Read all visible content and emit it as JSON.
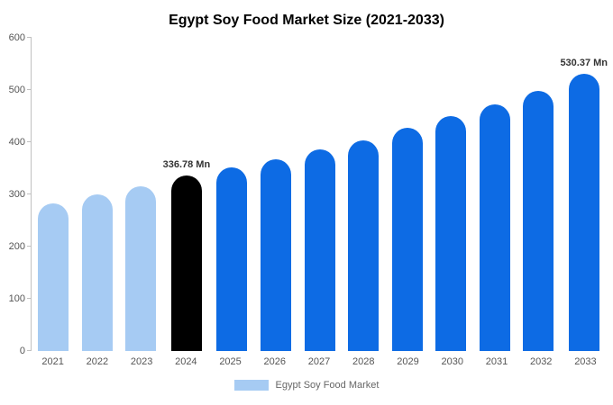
{
  "title": "Egypt Soy Food Market Size (2021-2033)",
  "legend": {
    "label": "Egypt Soy Food Market",
    "swatch_color": "#a6cbf3"
  },
  "colors": {
    "past": "#a6cbf3",
    "current": "#000000",
    "forecast": "#0d6be4"
  },
  "chart_data": {
    "type": "bar",
    "title": "Egypt Soy Food Market Size (2021-2033)",
    "categories": [
      "2021",
      "2022",
      "2023",
      "2024",
      "2025",
      "2026",
      "2027",
      "2028",
      "2029",
      "2030",
      "2031",
      "2032",
      "2033"
    ],
    "values": [
      283,
      300,
      315,
      336.78,
      351,
      368,
      387,
      404,
      427,
      450,
      472,
      499,
      530.37
    ],
    "bar_roles": [
      "past",
      "past",
      "past",
      "current",
      "forecast",
      "forecast",
      "forecast",
      "forecast",
      "forecast",
      "forecast",
      "forecast",
      "forecast",
      "forecast"
    ],
    "annotations": [
      {
        "category": "2024",
        "text": "336.78 Mn"
      },
      {
        "category": "2033",
        "text": "530.37 Mn"
      }
    ],
    "xlabel": "",
    "ylabel": "",
    "ylim": [
      0,
      600
    ],
    "y_ticks": [
      0,
      100,
      200,
      300,
      400,
      500,
      600
    ],
    "grid": false,
    "legend_position": "bottom",
    "legend_entries": [
      "Egypt Soy Food Market"
    ]
  }
}
